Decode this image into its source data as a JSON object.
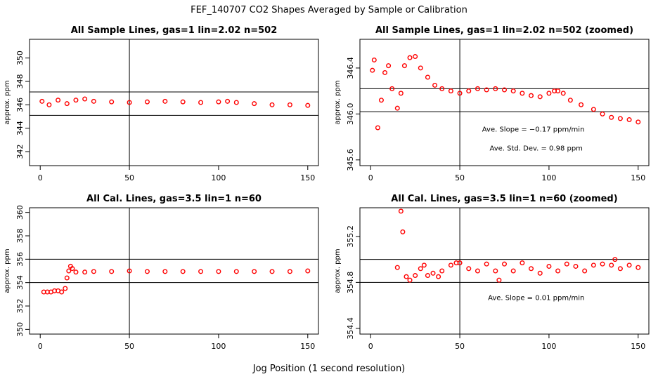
{
  "figure": {
    "title": "FEF_140707  CO2 Shapes Averaged by Sample or Calibration",
    "xlabel": "Jog Position (1 second resolution)"
  },
  "chart_data": [
    {
      "id": "p1",
      "type": "scatter",
      "title": "All Sample Lines, gas=1 lin=2.02 n=502",
      "ylabel": "approx. ppm",
      "xlim": [
        -6,
        156
      ],
      "ylim": [
        340.8,
        351.6
      ],
      "xticks": [
        "0",
        "50",
        "100",
        "150"
      ],
      "yticks": [
        "342",
        "344",
        "346",
        "348",
        "350"
      ],
      "vline": 50,
      "hlines": [
        347.1,
        345.1
      ],
      "marker_color": "#ff0000",
      "series": [
        {
          "x": [
            1,
            5,
            10,
            15,
            20,
            25,
            30,
            40,
            50,
            60,
            70,
            80,
            90,
            100,
            105,
            110,
            120,
            130,
            140,
            150
          ],
          "y": [
            346.3,
            346.0,
            346.4,
            346.1,
            346.4,
            346.5,
            346.3,
            346.25,
            346.2,
            346.25,
            346.3,
            346.25,
            346.2,
            346.25,
            346.3,
            346.2,
            346.1,
            346.0,
            346.0,
            345.95
          ]
        }
      ],
      "annotations": []
    },
    {
      "id": "p2",
      "type": "scatter",
      "title": "All Sample Lines, gas=1 lin=2.02 n=502 (zoomed)",
      "ylabel": "approx. ppm",
      "xlim": [
        -6,
        156
      ],
      "ylim": [
        345.55,
        346.65
      ],
      "xticks": [
        "0",
        "50",
        "100",
        "150"
      ],
      "yticks": [
        "345.6",
        "346.0",
        "346.4"
      ],
      "vline": 50,
      "hlines": [
        346.22,
        346.02
      ],
      "marker_color": "#ff0000",
      "series": [
        {
          "x": [
            1,
            2,
            4,
            6,
            8,
            10,
            12,
            15,
            17,
            19,
            22,
            25,
            28,
            32,
            36,
            40,
            45,
            50,
            55,
            60,
            65,
            70,
            75,
            80,
            85,
            90,
            95,
            100,
            103,
            105,
            108,
            112,
            118,
            125,
            130,
            135,
            140,
            145,
            150
          ],
          "y": [
            346.38,
            346.47,
            345.88,
            346.12,
            346.36,
            346.42,
            346.22,
            346.05,
            346.18,
            346.42,
            346.49,
            346.5,
            346.4,
            346.32,
            346.25,
            346.22,
            346.2,
            346.18,
            346.2,
            346.22,
            346.21,
            346.22,
            346.21,
            346.2,
            346.18,
            346.16,
            346.15,
            346.18,
            346.2,
            346.2,
            346.18,
            346.12,
            346.08,
            346.04,
            346.0,
            345.97,
            345.96,
            345.95,
            345.93
          ]
        }
      ],
      "annotations": [
        {
          "label": "Ave. Slope =  −0.17  ppm/min"
        },
        {
          "label": "Ave. Std. Dev. =  0.98  ppm"
        }
      ]
    },
    {
      "id": "p3",
      "type": "scatter",
      "title": "All Cal. Lines, gas=3.5 lin=1 n=60",
      "ylabel": "approx. ppm",
      "xlim": [
        -6,
        156
      ],
      "ylim": [
        349.6,
        360.4
      ],
      "xticks": [
        "0",
        "50",
        "100",
        "150"
      ],
      "yticks": [
        "350",
        "352",
        "354",
        "356",
        "358",
        "360"
      ],
      "vline": 50,
      "hlines": [
        356.0,
        354.0
      ],
      "marker_color": "#ff0000",
      "series": [
        {
          "x": [
            2,
            4,
            6,
            8,
            10,
            12,
            14,
            15,
            16,
            17,
            18,
            20,
            25,
            30,
            40,
            50,
            60,
            70,
            80,
            90,
            100,
            110,
            120,
            130,
            140,
            150
          ],
          "y": [
            353.2,
            353.2,
            353.2,
            353.3,
            353.3,
            353.2,
            353.5,
            354.4,
            355.0,
            355.4,
            355.2,
            354.9,
            354.9,
            354.95,
            354.95,
            355.0,
            354.95,
            354.95,
            354.95,
            354.95,
            354.95,
            354.95,
            354.95,
            354.95,
            354.95,
            355.0
          ]
        }
      ],
      "annotations": []
    },
    {
      "id": "p4",
      "type": "scatter",
      "title": "All Cal. Lines, gas=3.5 lin=1 n=60 (zoomed)",
      "ylabel": "approx. ppm",
      "xlim": [
        -6,
        156
      ],
      "ylim": [
        354.35,
        355.45
      ],
      "xticks": [
        "0",
        "50",
        "100",
        "150"
      ],
      "yticks": [
        "354.4",
        "354.8",
        "355.2"
      ],
      "vline": 50,
      "hlines": [
        355.0,
        354.8
      ],
      "marker_color": "#ff0000",
      "series": [
        {
          "x": [
            15,
            17,
            18,
            20,
            22,
            25,
            28,
            30,
            32,
            35,
            38,
            40,
            45,
            48,
            50,
            55,
            60,
            65,
            70,
            72,
            75,
            80,
            85,
            90,
            95,
            100,
            105,
            110,
            115,
            120,
            125,
            130,
            135,
            137,
            140,
            145,
            150
          ],
          "y": [
            354.93,
            355.42,
            355.24,
            354.85,
            354.82,
            354.86,
            354.92,
            354.95,
            354.86,
            354.88,
            354.85,
            354.9,
            354.95,
            354.97,
            354.97,
            354.92,
            354.9,
            354.96,
            354.9,
            354.82,
            354.96,
            354.9,
            354.97,
            354.92,
            354.88,
            354.94,
            354.9,
            354.96,
            354.94,
            354.9,
            354.95,
            354.96,
            354.95,
            355.0,
            354.92,
            354.95,
            354.93
          ]
        }
      ],
      "annotations": [
        {
          "label": "Ave. Slope =  0.01  ppm/min"
        }
      ]
    }
  ]
}
